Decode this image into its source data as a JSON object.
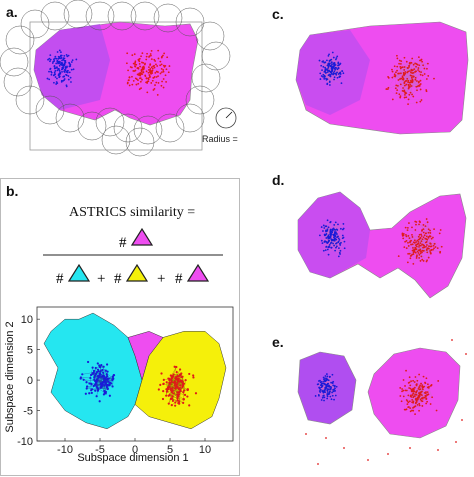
{
  "labels": {
    "a": "a.",
    "b": "b.",
    "c": "c.",
    "d": "d.",
    "e": "e."
  },
  "radius_label": "Radius = α",
  "equation": {
    "title": "ASTRICS similarity  =",
    "hash": "#",
    "plus": "+"
  },
  "colors": {
    "blue": "#1a1ad8",
    "red": "#e01a1a",
    "magenta": "#ee4df0",
    "cyan": "#25e6f0",
    "yellow": "#f5f00a",
    "purple": "#b04ef0"
  },
  "chart_data": {
    "type": "scatter",
    "xlabel": "Subspace dimension 1",
    "ylabel": "Subspace dimension 2",
    "xlim": [
      -14,
      14
    ],
    "ylim": [
      -10,
      12
    ],
    "xticks": [
      -10,
      -5,
      0,
      5,
      10
    ],
    "yticks": [
      10,
      5,
      0,
      -5,
      -10
    ],
    "series": [
      {
        "values": "blue cluster centered near (-5, 0)"
      },
      {
        "values": "red cluster centered near (6, -1)"
      }
    ]
  }
}
